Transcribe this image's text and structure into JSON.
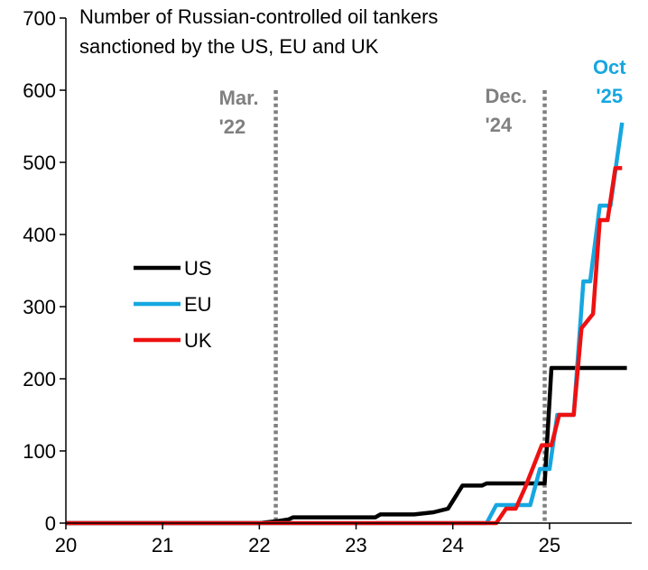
{
  "chart_data": {
    "type": "line",
    "title_lines": [
      "Number of Russian-controlled oil tankers",
      "sanctioned by the US, EU and UK"
    ],
    "xlim": [
      20,
      25.85
    ],
    "ylim": [
      0,
      700
    ],
    "x_ticks": [
      20,
      21,
      22,
      23,
      24,
      25
    ],
    "y_ticks": [
      0,
      100,
      200,
      300,
      400,
      500,
      600,
      700
    ],
    "grid": false,
    "legend": [
      "US",
      "EU",
      "UK"
    ],
    "legend_position": "center-left",
    "series": [
      {
        "name": "US",
        "color": "#000000",
        "points": [
          [
            20.0,
            0
          ],
          [
            22.0,
            0
          ],
          [
            22.2,
            3
          ],
          [
            22.3,
            5
          ],
          [
            22.35,
            8
          ],
          [
            23.2,
            8
          ],
          [
            23.25,
            12
          ],
          [
            23.6,
            12
          ],
          [
            23.8,
            15
          ],
          [
            23.95,
            20
          ],
          [
            24.1,
            52
          ],
          [
            24.3,
            52
          ],
          [
            24.35,
            55
          ],
          [
            24.95,
            55
          ],
          [
            25.02,
            215
          ],
          [
            25.8,
            215
          ]
        ]
      },
      {
        "name": "EU",
        "color": "#16a7e0",
        "points": [
          [
            20.0,
            0
          ],
          [
            24.35,
            0
          ],
          [
            24.45,
            25
          ],
          [
            24.8,
            25
          ],
          [
            24.9,
            75
          ],
          [
            25.0,
            75
          ],
          [
            25.08,
            150
          ],
          [
            25.25,
            150
          ],
          [
            25.35,
            335
          ],
          [
            25.42,
            335
          ],
          [
            25.52,
            440
          ],
          [
            25.63,
            440
          ],
          [
            25.75,
            555
          ]
        ]
      },
      {
        "name": "UK",
        "color": "#ee1111",
        "points": [
          [
            20.0,
            0
          ],
          [
            24.45,
            0
          ],
          [
            24.55,
            20
          ],
          [
            24.65,
            20
          ],
          [
            24.75,
            50
          ],
          [
            24.92,
            108
          ],
          [
            25.02,
            108
          ],
          [
            25.1,
            150
          ],
          [
            25.25,
            150
          ],
          [
            25.33,
            270
          ],
          [
            25.45,
            290
          ],
          [
            25.52,
            420
          ],
          [
            25.6,
            420
          ],
          [
            25.68,
            492
          ],
          [
            25.75,
            492
          ]
        ]
      }
    ],
    "annotations": [
      {
        "label_lines": [
          "Mar.",
          "'22"
        ],
        "x": 22.17,
        "color": "#808080",
        "line": "dotted"
      },
      {
        "label_lines": [
          "Dec.",
          "'24"
        ],
        "x": 24.95,
        "color": "#808080",
        "line": "dotted"
      },
      {
        "label_lines": [
          "Oct",
          "'25"
        ],
        "x": 25.75,
        "color": "#16a7e0",
        "line": "none"
      }
    ]
  }
}
